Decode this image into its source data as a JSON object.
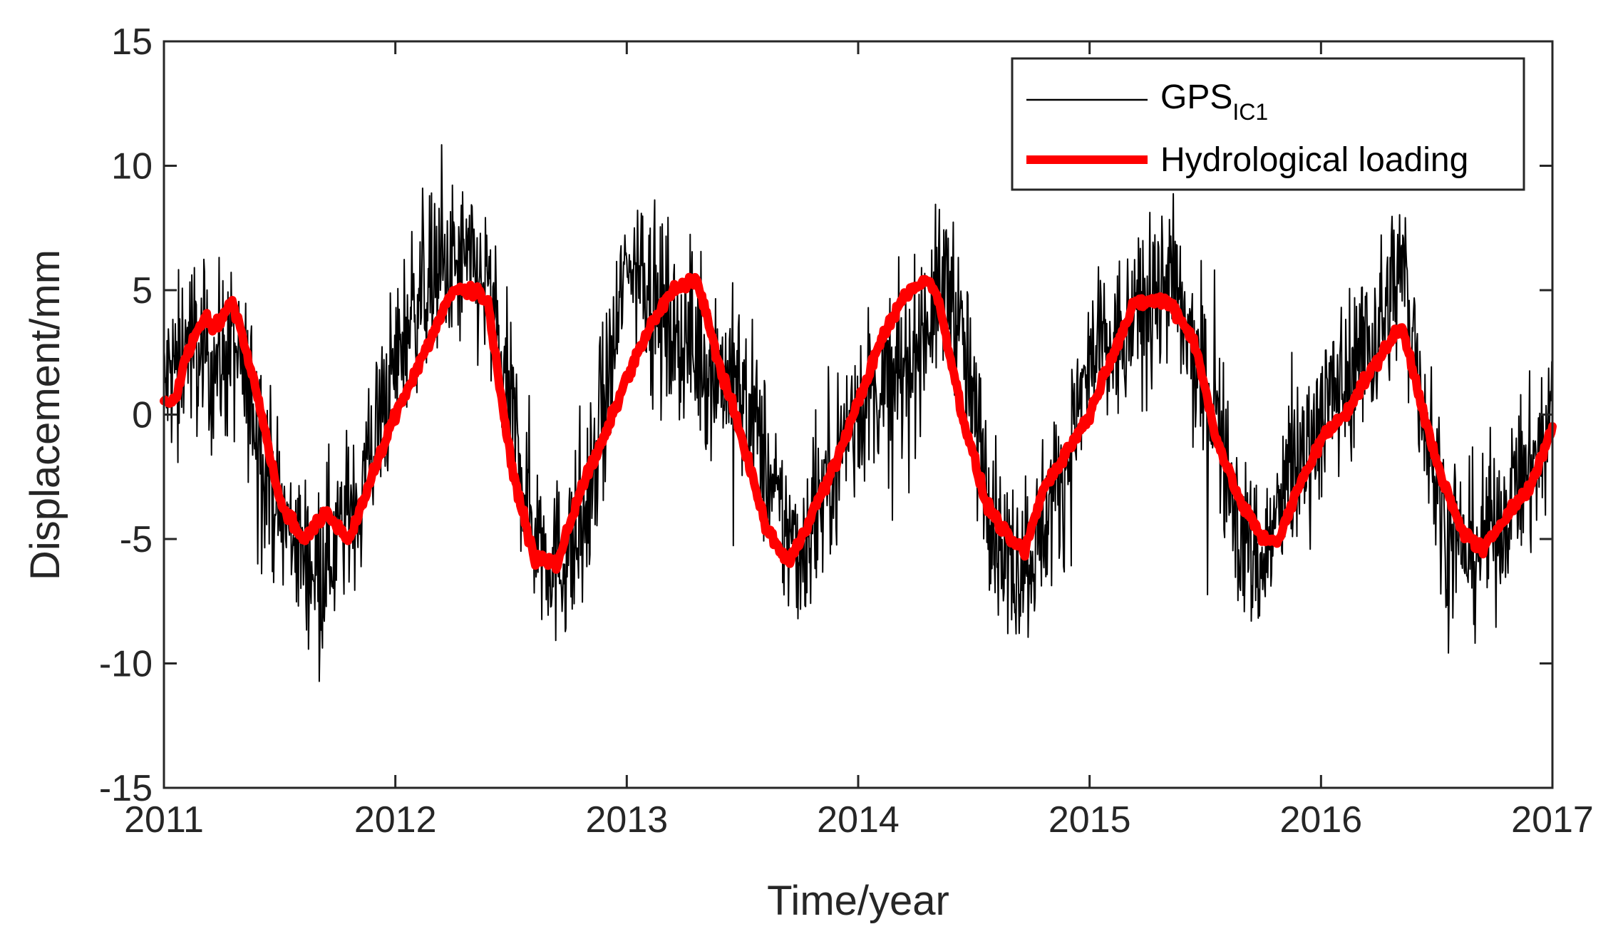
{
  "chart_data": {
    "type": "line",
    "xlabel": "Time/year",
    "ylabel": "Displacement/mm",
    "xlim": [
      2011,
      2017
    ],
    "ylim": [
      -15,
      15
    ],
    "xticks": [
      2011,
      2012,
      2013,
      2014,
      2015,
      2016,
      2017
    ],
    "yticks": [
      -15,
      -10,
      -5,
      0,
      5,
      10,
      15
    ],
    "grid": false,
    "legend_position": "top-right",
    "legend": {
      "gps_main": "GPS",
      "gps_sub": "IC1",
      "hydro": "Hydrological loading"
    },
    "series": [
      {
        "name": "GPS_IC1",
        "color": "#000000",
        "style": "thin noisy daily series",
        "x": [
          2011.0,
          2011.1,
          2011.2,
          2011.3,
          2011.4,
          2011.5,
          2011.6,
          2011.65,
          2011.75,
          2011.85,
          2012.0,
          2012.1,
          2012.2,
          2012.3,
          2012.4,
          2012.5,
          2012.6,
          2012.7,
          2012.8,
          2012.9,
          2013.0,
          2013.05,
          2013.15,
          2013.25,
          2013.35,
          2013.45,
          2013.55,
          2013.65,
          2013.75,
          2013.85,
          2014.0,
          2014.1,
          2014.2,
          2014.3,
          2014.4,
          2014.5,
          2014.6,
          2014.65,
          2014.75,
          2014.9,
          2015.0,
          2015.15,
          2015.25,
          2015.35,
          2015.45,
          2015.55,
          2015.65,
          2015.75,
          2015.85,
          2016.0,
          2016.15,
          2016.25,
          2016.35,
          2016.45,
          2016.55,
          2016.65,
          2016.75,
          2016.85,
          2016.95,
          2017.0
        ],
        "y": [
          1.0,
          3.0,
          2.0,
          2.5,
          0.0,
          -4.0,
          -5.5,
          -6.0,
          -5.0,
          -3.0,
          2.0,
          5.0,
          5.5,
          6.0,
          5.0,
          0.0,
          -4.5,
          -6.0,
          -5.0,
          0.0,
          6.0,
          6.5,
          4.0,
          3.0,
          2.0,
          1.5,
          0.0,
          -4.0,
          -5.5,
          -3.0,
          0.5,
          1.0,
          1.5,
          4.0,
          5.5,
          0.0,
          -4.5,
          -6.0,
          -5.5,
          -2.0,
          2.0,
          3.0,
          4.5,
          5.5,
          2.0,
          0.0,
          -5.0,
          -6.0,
          -3.0,
          0.0,
          2.0,
          3.5,
          6.0,
          0.0,
          -5.0,
          -5.5,
          -4.5,
          -3.0,
          -1.5,
          0.5
        ]
      },
      {
        "name": "Hydrological loading",
        "color": "#ff0000",
        "style": "thick smooth series",
        "x": [
          2011.0,
          2011.05,
          2011.1,
          2011.18,
          2011.22,
          2011.3,
          2011.4,
          2011.5,
          2011.6,
          2011.65,
          2011.7,
          2011.8,
          2011.9,
          2012.0,
          2012.1,
          2012.2,
          2012.25,
          2012.3,
          2012.35,
          2012.4,
          2012.5,
          2012.6,
          2012.7,
          2012.8,
          2012.9,
          2013.0,
          2013.1,
          2013.2,
          2013.3,
          2013.4,
          2013.5,
          2013.6,
          2013.7,
          2013.8,
          2013.9,
          2014.0,
          2014.1,
          2014.2,
          2014.3,
          2014.35,
          2014.45,
          2014.55,
          2014.65,
          2014.72,
          2014.8,
          2014.9,
          2015.0,
          2015.1,
          2015.2,
          2015.3,
          2015.35,
          2015.45,
          2015.55,
          2015.65,
          2015.75,
          2015.82,
          2015.9,
          2016.0,
          2016.1,
          2016.2,
          2016.3,
          2016.35,
          2016.42,
          2016.5,
          2016.6,
          2016.7,
          2016.8,
          2016.9,
          2017.0
        ],
        "y": [
          0.5,
          0.6,
          2.5,
          4.0,
          3.5,
          4.5,
          1.0,
          -3.5,
          -5.0,
          -4.5,
          -4.0,
          -5.0,
          -2.5,
          0.0,
          2.0,
          4.0,
          5.0,
          5.0,
          5.0,
          4.5,
          -2.0,
          -5.8,
          -6.0,
          -3.0,
          -1.0,
          1.5,
          3.5,
          5.0,
          5.5,
          2.0,
          -1.0,
          -4.5,
          -6.0,
          -4.0,
          -2.0,
          0.5,
          3.0,
          4.8,
          5.5,
          4.5,
          0.0,
          -3.5,
          -5.0,
          -5.5,
          -3.0,
          -1.5,
          0.0,
          2.5,
          4.5,
          4.6,
          4.5,
          3.0,
          -1.0,
          -3.5,
          -5.0,
          -5.0,
          -3.0,
          -1.0,
          0.0,
          1.5,
          3.0,
          3.5,
          1.0,
          -2.0,
          -4.5,
          -5.5,
          -4.0,
          -3.0,
          -0.5
        ]
      }
    ]
  }
}
